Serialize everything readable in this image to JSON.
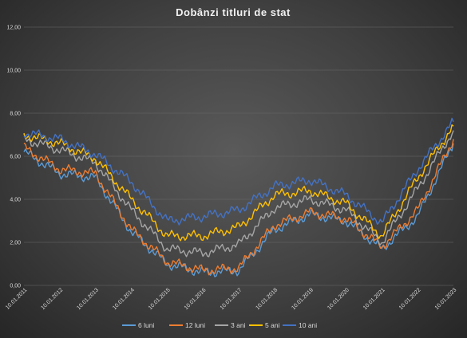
{
  "chart_data": {
    "type": "line",
    "title": "Dobânzi  titluri  de stat",
    "xlabel": "",
    "ylabel": "",
    "ylim": [
      0,
      12
    ],
    "yticks": [
      "0,00",
      "2,00",
      "4,00",
      "6,00",
      "8,00",
      "10,00",
      "12,00"
    ],
    "grid": true,
    "legend_position": "bottom",
    "x": [
      "10.01.2011",
      "10.01.2012",
      "10.01.2013",
      "10.01.2014",
      "10.01.2015",
      "10.01.2016",
      "10.01.2017",
      "10.01.2018",
      "10.01.2019",
      "10.01.2020",
      "10.01.2021",
      "10.01.2022",
      "10.01.2023"
    ],
    "series": [
      {
        "name": "6 luni",
        "color": "#5b9bd5",
        "values": [
          6.2,
          5.2,
          5.0,
          2.5,
          1.0,
          0.6,
          0.7,
          2.6,
          3.3,
          3.0,
          1.7,
          3.2,
          6.6
        ]
      },
      {
        "name": "12 luni",
        "color": "#ed7d31",
        "values": [
          6.4,
          5.4,
          5.2,
          2.6,
          1.1,
          0.7,
          0.8,
          2.8,
          3.4,
          3.1,
          1.8,
          3.5,
          6.8
        ]
      },
      {
        "name": "3 ani",
        "color": "#a5a5a5",
        "values": [
          6.8,
          6.3,
          5.7,
          3.5,
          1.7,
          1.5,
          1.9,
          3.6,
          4.0,
          3.5,
          2.0,
          4.5,
          7.2
        ]
      },
      {
        "name": "5 ani",
        "color": "#ffc000",
        "values": [
          7.0,
          6.6,
          5.9,
          4.0,
          2.3,
          2.3,
          2.7,
          4.2,
          4.4,
          3.8,
          2.3,
          5.0,
          7.4
        ]
      },
      {
        "name": "10 ani",
        "color": "#4472c4",
        "values": [
          7.1,
          6.8,
          6.1,
          4.8,
          3.0,
          3.2,
          3.5,
          4.6,
          4.9,
          4.2,
          2.9,
          5.4,
          7.6
        ]
      }
    ]
  }
}
